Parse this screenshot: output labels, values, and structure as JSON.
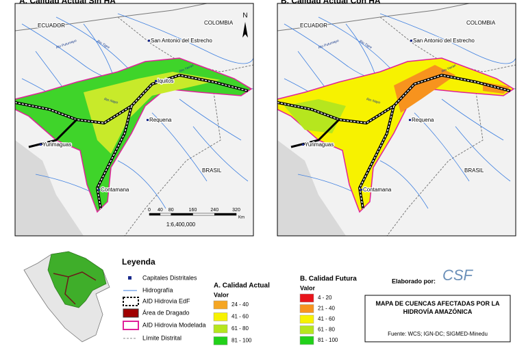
{
  "panel_a": {
    "title": "A. Calidad Actual Sin HA",
    "labels": [
      "ECUADOR",
      "COLOMBIA",
      "San Antonio del Estrecho",
      "Iquitos",
      "Requena",
      "Yurimaguas",
      "Contamana",
      "BRASIL"
    ],
    "rivers": [
      "Rio Putumayo",
      "Rio Napo",
      "Rio Tigre",
      "Rio Yavari"
    ],
    "north": "N",
    "scale": {
      "ticks": [
        0,
        40,
        80,
        160,
        240,
        320
      ],
      "unit": "Km",
      "ratio": "1:6,400,000"
    }
  },
  "panel_b": {
    "title": "B. Calidad Actual Con HA",
    "labels": [
      "ECUADOR",
      "COLOMBIA",
      "San Antonio del Estrecho",
      "Requena",
      "Yurimaguas",
      "Contamana",
      "BRASIL"
    ],
    "rivers": [
      "Rio Putumayo",
      "Rio Napo",
      "Rio Tigre",
      "Rio Yavari"
    ]
  },
  "legend": {
    "title": "Leyenda",
    "items": [
      "Capitales Distritales",
      "Hidrografía",
      "AID Hidrovia EdF",
      "Área de Dragado",
      "AID Hidrovia Modelada",
      "Límite Distrital"
    ],
    "actual": {
      "title": "A. Calidad Actual",
      "subtitle": "Valor",
      "classes": [
        "24 - 40",
        "41 - 60",
        "61 - 80",
        "81 - 100"
      ],
      "colors": [
        "#f5a623",
        "#f7f200",
        "#b6e61e",
        "#22d11a"
      ]
    },
    "futura": {
      "title": "B. Calidad Futura",
      "subtitle": "Valor",
      "classes": [
        "4 - 20",
        "21 - 40",
        "41 - 60",
        "61 - 80",
        "81 - 100"
      ],
      "colors": [
        "#e8141b",
        "#f7931e",
        "#f7f200",
        "#b6e61e",
        "#22d11a"
      ]
    }
  },
  "credits": {
    "elaborado": "Elaborado por:",
    "logo": "CSF",
    "box_title": "MAPA DE CUENCAS AFECTADAS POR LA HIDROVÍA AMAZÓNICA",
    "source": "Fuente: WCS; IGN-DC; SIGMED-Minedu"
  }
}
